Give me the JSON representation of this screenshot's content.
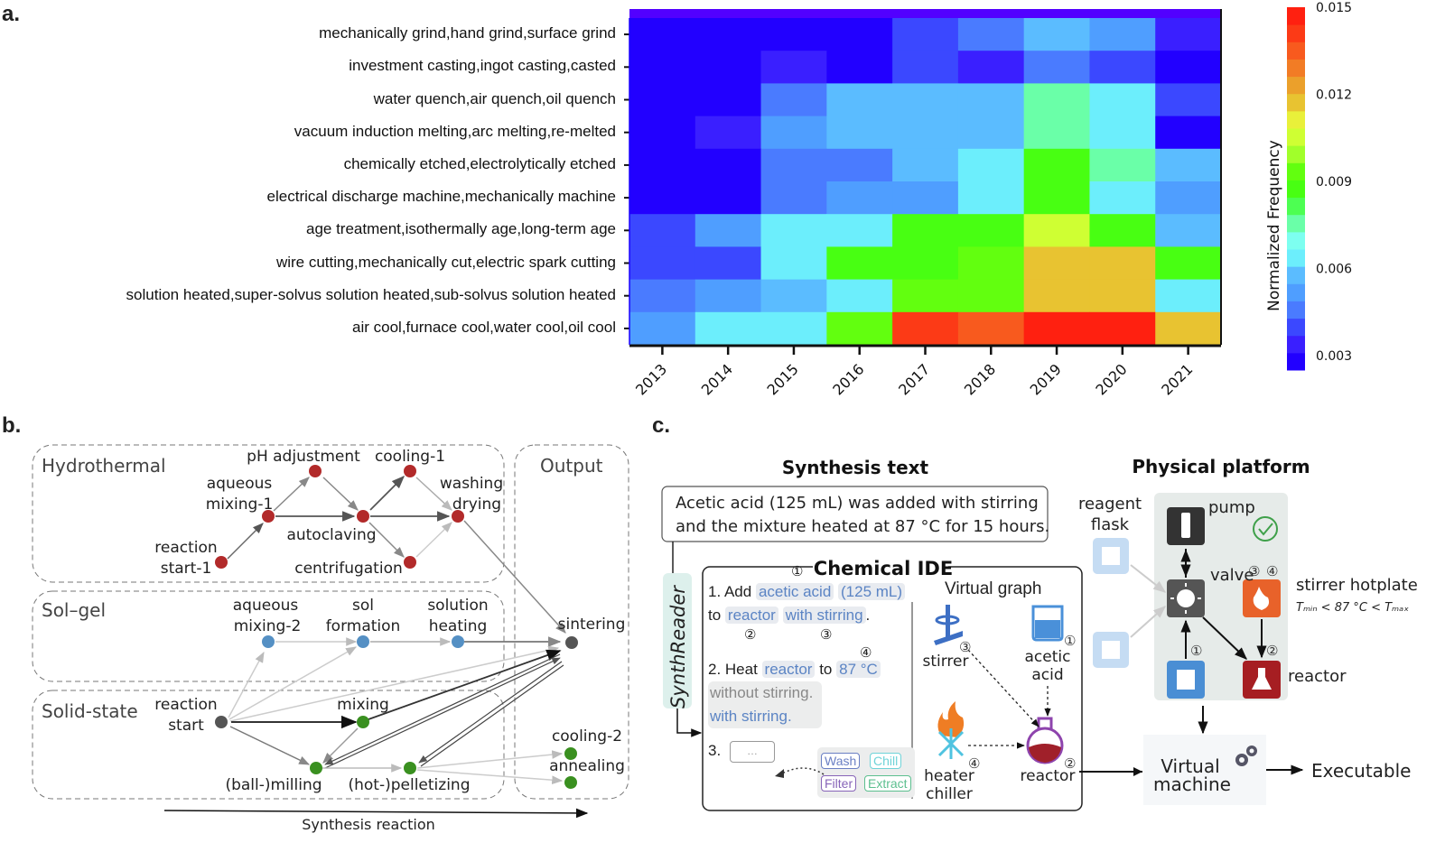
{
  "panels": {
    "a": "a.",
    "b": "b.",
    "c": "c."
  },
  "chart_data": {
    "type": "heatmap",
    "title": "",
    "xlabel": "",
    "ylabel": "",
    "x": [
      "2013",
      "2014",
      "2015",
      "2016",
      "2017",
      "2018",
      "2019",
      "2020",
      "2021"
    ],
    "y": [
      "mechanically grind,hand grind,surface grind",
      "investment casting,ingot casting,casted",
      "water quench,air quench,oil quench",
      "vacuum induction melting,arc melting,re-melted",
      "chemically etched,electrolytically etched",
      "electrical discharge machine,mechanically machine",
      "age treatment,isothermally age,long-term age",
      "wire cutting,mechanically cut,electric spark cutting",
      "solution heated,super-solvus solution heated,sub-solvus solution heated",
      "air cool,furnace cool,water cool,oil cool"
    ],
    "values": [
      [
        0.0025,
        0.0025,
        0.003,
        0.003,
        0.004,
        0.0045,
        0.006,
        0.005,
        0.0035
      ],
      [
        0.0028,
        0.003,
        0.0035,
        0.003,
        0.004,
        0.0035,
        0.0045,
        0.004,
        0.003
      ],
      [
        0.003,
        0.003,
        0.0045,
        0.0055,
        0.0055,
        0.006,
        0.0075,
        0.0065,
        0.004
      ],
      [
        0.003,
        0.0035,
        0.005,
        0.006,
        0.006,
        0.006,
        0.0075,
        0.0065,
        0.003
      ],
      [
        0.003,
        0.003,
        0.0045,
        0.0045,
        0.006,
        0.0065,
        0.009,
        0.0075,
        0.006
      ],
      [
        0.003,
        0.003,
        0.0045,
        0.005,
        0.005,
        0.0065,
        0.0085,
        0.0065,
        0.005
      ],
      [
        0.004,
        0.005,
        0.0065,
        0.0065,
        0.009,
        0.009,
        0.0105,
        0.009,
        0.006
      ],
      [
        0.004,
        0.004,
        0.0065,
        0.0085,
        0.0085,
        0.0095,
        0.0115,
        0.0115,
        0.0085
      ],
      [
        0.0045,
        0.005,
        0.006,
        0.0065,
        0.0095,
        0.0095,
        0.012,
        0.0115,
        0.0065
      ],
      [
        0.005,
        0.0065,
        0.0065,
        0.0095,
        0.014,
        0.0135,
        0.015,
        0.015,
        0.0115
      ]
    ],
    "colorbar": {
      "label": "Normalized Frequency",
      "range": [
        0.0025,
        0.015
      ],
      "ticks": [
        "0.003",
        "0.006",
        "0.009",
        "0.012",
        "0.015"
      ],
      "tick_values": [
        0.003,
        0.006,
        0.009,
        0.012,
        0.015
      ],
      "colors": [
        "#2200ff",
        "#3a1fff",
        "#3b48ff",
        "#4a7bff",
        "#4f9eff",
        "#5bbcff",
        "#6ceefc",
        "#7dfff0",
        "#6affa8",
        "#4dff52",
        "#48ff12",
        "#62ff0f",
        "#a1ff2a",
        "#cfff33",
        "#e9f03a",
        "#e8c331",
        "#eba02b",
        "#f27c25",
        "#f85a1e",
        "#fc3a16",
        "#ff2010"
      ]
    }
  },
  "diagram_b": {
    "groups": [
      "Hydrothermal",
      "Sol–gel",
      "Solid-state",
      "Output"
    ],
    "nodes": {
      "reaction_start_1": [
        "reaction",
        "start-1"
      ],
      "aqueous_mixing_1": [
        "aqueous",
        "mixing-1"
      ],
      "ph_adjustment": [
        "pH adjustment"
      ],
      "autoclaving": [
        "autoclaving"
      ],
      "cooling_1": [
        "cooling-1"
      ],
      "centrifugation": [
        "centrifugation"
      ],
      "washing_drying": [
        "washing",
        "drying"
      ],
      "aqueous_mixing_2": [
        "aqueous",
        "mixing-2"
      ],
      "sol_formation": [
        "sol",
        "formation"
      ],
      "solution_heating": [
        "solution",
        "heating"
      ],
      "reaction_start": [
        "reaction",
        "start"
      ],
      "mixing": [
        "mixing"
      ],
      "ball_milling": [
        "(ball-)milling"
      ],
      "hot_pelletizing": [
        "(hot-)pelletizing"
      ],
      "sintering": [
        "sintering"
      ],
      "cooling_2": [
        "cooling-2"
      ],
      "annealing": [
        "annealing"
      ]
    },
    "axis_label": "Synthesis reaction",
    "colors": {
      "hydrothermal": "#b22a2a",
      "solgel": "#5590c4",
      "solid": "#3a9020",
      "output": "#555555"
    }
  },
  "diagram_c": {
    "synthesis_title": "Synthesis text",
    "synthesis_text_1": "Acetic acid (125 mL) was added with stirring",
    "synthesis_text_2": "and the mixture heated at 87 °C for 15 hours.",
    "synthreader": "SynthReader",
    "ide_title": "Chemical IDE",
    "step1_prefix": "1. Add",
    "step1_token1": "acetic acid",
    "step1_token2": "(125 mL)",
    "step1_to": "to",
    "step1_token3": "reactor",
    "step1_token4": "with stirring",
    "step1_end": ".",
    "step2_prefix": "2. Heat",
    "step2_token1": "reactor",
    "step2_to": "to",
    "step2_token2": "87 °C",
    "step2_opt1": "without stirring.",
    "step2_opt2": "with stirring.",
    "step3_prefix": "3.",
    "step3_placeholder": "…",
    "actions": [
      "Wash",
      "Chill",
      "Filter",
      "Extract"
    ],
    "marks": [
      "①",
      "②",
      "③",
      "④"
    ],
    "vgraph_title": "Virtual graph",
    "vgraph_stirrer": "stirrer",
    "vgraph_acid": [
      "acetic",
      "acid"
    ],
    "vgraph_heater": [
      "heater",
      "chiller"
    ],
    "vgraph_reactor": "reactor",
    "platform_title": "Physical platform",
    "reagent_flask": [
      "reagent",
      "flask"
    ],
    "pump": "pump",
    "valve": "valve",
    "stirrer_hotplate": "stirrer hotplate",
    "temp_constraint": "Tₘᵢₙ < 87 °C < Tₘₐₓ",
    "reactor": "reactor",
    "virtual_machine": [
      "Virtual",
      "machine"
    ],
    "executable": "Executable"
  }
}
